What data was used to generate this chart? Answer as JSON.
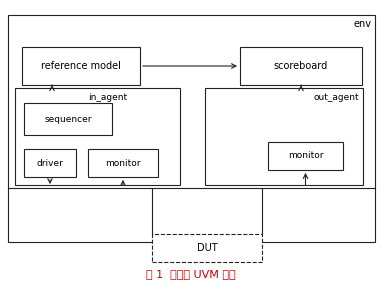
{
  "title": "图 1  典型的 UVM 平台",
  "title_color": "#cc0000",
  "bg_color": "#ffffff",
  "env_label": "env",
  "ref_model_label": "reference model",
  "scoreboard_label": "scoreboard",
  "in_agent_label": "in_agent",
  "out_agent_label": "out_agent",
  "sequencer_label": "sequencer",
  "driver_label": "driver",
  "in_monitor_label": "monitor",
  "out_monitor_label": "monitor",
  "dut_label": "DUT",
  "line_color": "#222222",
  "box_edge_color": "#222222"
}
